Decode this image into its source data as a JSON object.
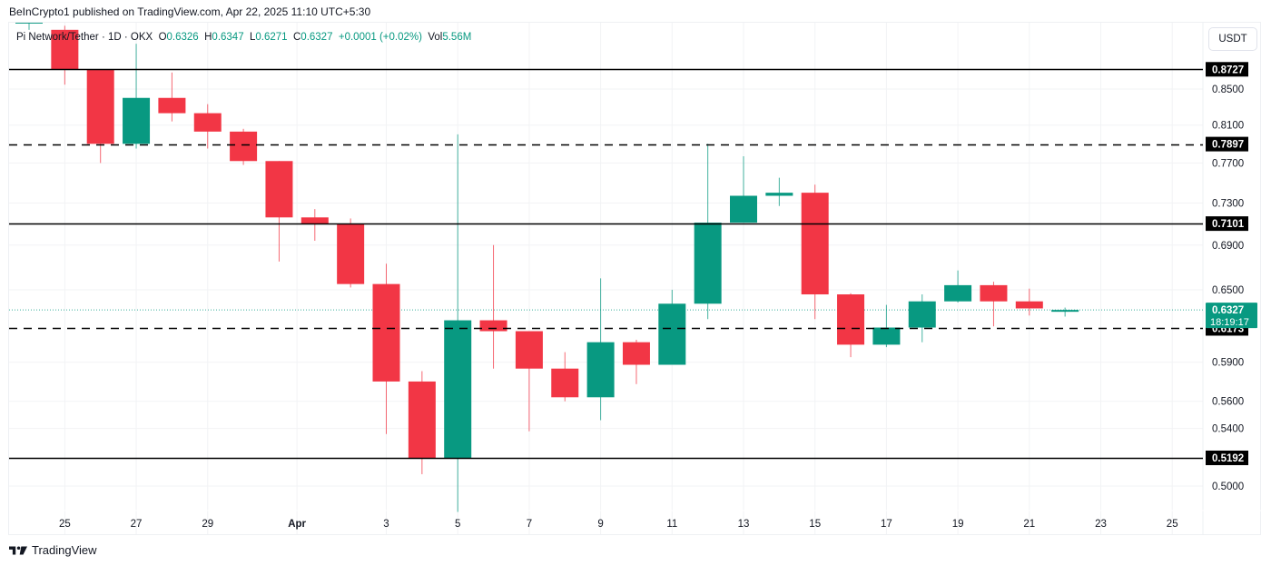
{
  "header": {
    "publisher_line": "BeInCrypto1 published on TradingView.com, Apr 22, 2025 11:10 UTC+5:30"
  },
  "legend": {
    "symbol": "Pi Network/Tether · 1D · OKX",
    "open_label": "O",
    "open": "0.6326",
    "high_label": "H",
    "high": "0.6347",
    "low_label": "L",
    "low": "0.6271",
    "close_label": "C",
    "close": "0.6327",
    "change": "+0.0001 (+0.02%)",
    "vol_label": "Vol",
    "vol": "5.56M"
  },
  "price_axis": {
    "currency": "USDT",
    "ticks": [
      "0.8500",
      "0.8100",
      "0.7700",
      "0.7300",
      "0.6900",
      "0.6500",
      "0.5900",
      "0.5600",
      "0.5400",
      "0.5000"
    ],
    "current_price": "0.6327",
    "countdown": "18:19:17"
  },
  "time_axis": {
    "ticks": [
      "25",
      "27",
      "29",
      "Apr",
      "3",
      "5",
      "7",
      "9",
      "11",
      "13",
      "15",
      "17",
      "19",
      "21",
      "23",
      "25"
    ]
  },
  "levels": [
    {
      "price": "0.8727",
      "style": "solid"
    },
    {
      "price": "0.7897",
      "style": "dashed"
    },
    {
      "price": "0.7101",
      "style": "solid"
    },
    {
      "price": "0.6173",
      "style": "dashed"
    },
    {
      "price": "0.5192",
      "style": "solid"
    }
  ],
  "footer": {
    "brand": "TradingView"
  },
  "colors": {
    "up": "#089981",
    "down": "#f23645",
    "level_line": "#000000",
    "grid": "#f2f3f5",
    "current_price_bg": "#089981",
    "level_label_bg": "#000000"
  },
  "chart_data": {
    "type": "candlestick",
    "title": "Pi Network/Tether · 1D · OKX",
    "xlabel": "",
    "ylabel": "USDT",
    "scale": "log",
    "ylim": [
      0.48,
      0.93
    ],
    "grid": true,
    "legend_position": "top-left",
    "categories": [
      "Mar 24",
      "Mar 25",
      "Mar 26",
      "Mar 27",
      "Mar 28",
      "Mar 29",
      "Mar 30",
      "Mar 31",
      "Apr 1",
      "Apr 2",
      "Apr 3",
      "Apr 4",
      "Apr 5",
      "Apr 6",
      "Apr 7",
      "Apr 8",
      "Apr 9",
      "Apr 10",
      "Apr 11",
      "Apr 12",
      "Apr 13",
      "Apr 14",
      "Apr 15",
      "Apr 16",
      "Apr 17",
      "Apr 18",
      "Apr 19",
      "Apr 20",
      "Apr 21",
      "Apr 22"
    ],
    "candles": [
      {
        "date": "Mar 24",
        "o": 0.93,
        "h": 0.93,
        "l": 0.92,
        "c": 0.93
      },
      {
        "date": "Mar 25",
        "o": 0.92,
        "h": 0.925,
        "l": 0.855,
        "c": 0.872
      },
      {
        "date": "Mar 26",
        "o": 0.872,
        "h": 0.872,
        "l": 0.77,
        "c": 0.79
      },
      {
        "date": "Mar 27",
        "o": 0.79,
        "h": 0.903,
        "l": 0.785,
        "c": 0.84
      },
      {
        "date": "Mar 28",
        "o": 0.84,
        "h": 0.869,
        "l": 0.814,
        "c": 0.823
      },
      {
        "date": "Mar 29",
        "o": 0.823,
        "h": 0.833,
        "l": 0.785,
        "c": 0.803
      },
      {
        "date": "Mar 30",
        "o": 0.803,
        "h": 0.806,
        "l": 0.768,
        "c": 0.772
      },
      {
        "date": "Mar 31",
        "o": 0.772,
        "h": 0.772,
        "l": 0.675,
        "c": 0.716
      },
      {
        "date": "Apr 1",
        "o": 0.716,
        "h": 0.724,
        "l": 0.694,
        "c": 0.71
      },
      {
        "date": "Apr 2",
        "o": 0.71,
        "h": 0.715,
        "l": 0.652,
        "c": 0.655
      },
      {
        "date": "Apr 3",
        "o": 0.655,
        "h": 0.673,
        "l": 0.536,
        "c": 0.575
      },
      {
        "date": "Apr 4",
        "o": 0.575,
        "h": 0.583,
        "l": 0.508,
        "c": 0.519
      },
      {
        "date": "Apr 5",
        "o": 0.519,
        "h": 0.8,
        "l": 0.483,
        "c": 0.624
      },
      {
        "date": "Apr 6",
        "o": 0.624,
        "h": 0.69,
        "l": 0.585,
        "c": 0.615
      },
      {
        "date": "Apr 7",
        "o": 0.615,
        "h": 0.615,
        "l": 0.538,
        "c": 0.585
      },
      {
        "date": "Apr 8",
        "o": 0.585,
        "h": 0.598,
        "l": 0.56,
        "c": 0.563
      },
      {
        "date": "Apr 9",
        "o": 0.563,
        "h": 0.66,
        "l": 0.546,
        "c": 0.606
      },
      {
        "date": "Apr 10",
        "o": 0.606,
        "h": 0.608,
        "l": 0.573,
        "c": 0.588
      },
      {
        "date": "Apr 11",
        "o": 0.588,
        "h": 0.65,
        "l": 0.588,
        "c": 0.638
      },
      {
        "date": "Apr 12",
        "o": 0.638,
        "h": 0.79,
        "l": 0.625,
        "c": 0.711
      },
      {
        "date": "Apr 13",
        "o": 0.711,
        "h": 0.777,
        "l": 0.711,
        "c": 0.737
      },
      {
        "date": "Apr 14",
        "o": 0.737,
        "h": 0.755,
        "l": 0.727,
        "c": 0.74
      },
      {
        "date": "Apr 15",
        "o": 0.74,
        "h": 0.748,
        "l": 0.625,
        "c": 0.646
      },
      {
        "date": "Apr 16",
        "o": 0.646,
        "h": 0.647,
        "l": 0.594,
        "c": 0.604
      },
      {
        "date": "Apr 17",
        "o": 0.604,
        "h": 0.637,
        "l": 0.602,
        "c": 0.618
      },
      {
        "date": "Apr 18",
        "o": 0.618,
        "h": 0.646,
        "l": 0.606,
        "c": 0.64
      },
      {
        "date": "Apr 19",
        "o": 0.64,
        "h": 0.667,
        "l": 0.639,
        "c": 0.654
      },
      {
        "date": "Apr 20",
        "o": 0.654,
        "h": 0.657,
        "l": 0.619,
        "c": 0.64
      },
      {
        "date": "Apr 21",
        "o": 0.64,
        "h": 0.651,
        "l": 0.628,
        "c": 0.634
      },
      {
        "date": "Apr 22",
        "o": 0.6326,
        "h": 0.6347,
        "l": 0.6271,
        "c": 0.6327
      }
    ],
    "annotations": [
      {
        "type": "hline",
        "y": 0.8727,
        "style": "solid"
      },
      {
        "type": "hline",
        "y": 0.7897,
        "style": "dashed"
      },
      {
        "type": "hline",
        "y": 0.7101,
        "style": "solid"
      },
      {
        "type": "hline",
        "y": 0.6173,
        "style": "dashed"
      },
      {
        "type": "hline",
        "y": 0.5192,
        "style": "solid"
      }
    ]
  }
}
